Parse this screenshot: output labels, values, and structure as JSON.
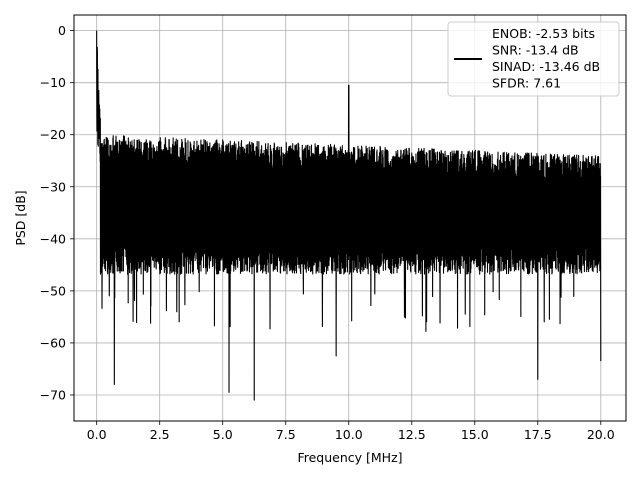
{
  "chart_data": {
    "type": "line",
    "title": "",
    "xlabel": "Frequency [MHz]",
    "ylabel": "PSD [dB]",
    "xlim": [
      -0.9,
      21.0
    ],
    "ylim": [
      -75,
      3
    ],
    "xticks": [
      0.0,
      2.5,
      5.0,
      7.5,
      10.0,
      12.5,
      15.0,
      17.5,
      20.0
    ],
    "xtick_labels": [
      "0.0",
      "2.5",
      "5.0",
      "7.5",
      "10.0",
      "12.5",
      "15.0",
      "17.5",
      "20.0"
    ],
    "yticks": [
      0,
      -10,
      -20,
      -30,
      -40,
      -50,
      -60,
      -70
    ],
    "ytick_labels": [
      "0",
      "−10",
      "−20",
      "−30",
      "−40",
      "−50",
      "−60",
      "−70"
    ],
    "grid": true,
    "legend_position": "top-right",
    "legend_entries": [
      "ENOB: -2.53 bits",
      "SNR: -13.4 dB",
      "SINAD: -13.46 dB",
      "SFDR: 7.61"
    ],
    "series": [
      {
        "color": "#000000",
        "description_values": {
          "x_start": 0.0,
          "x_end": 20.0,
          "dc_peak_db": 0.0,
          "spur_freq_mhz": 10.0,
          "spur_peak_db": -10.5,
          "noise_floor_upper_db_start": -20,
          "noise_floor_upper_db_end": -24,
          "noise_floor_lower_db": -45,
          "deep_nulls": [
            {
              "x": 0.7,
              "y": -68
            },
            {
              "x": 5.25,
              "y": -69.5
            },
            {
              "x": 6.25,
              "y": -71
            },
            {
              "x": 9.5,
              "y": -62.5
            },
            {
              "x": 17.5,
              "y": -67
            },
            {
              "x": 20.0,
              "y": -63.5
            }
          ]
        }
      }
    ]
  }
}
